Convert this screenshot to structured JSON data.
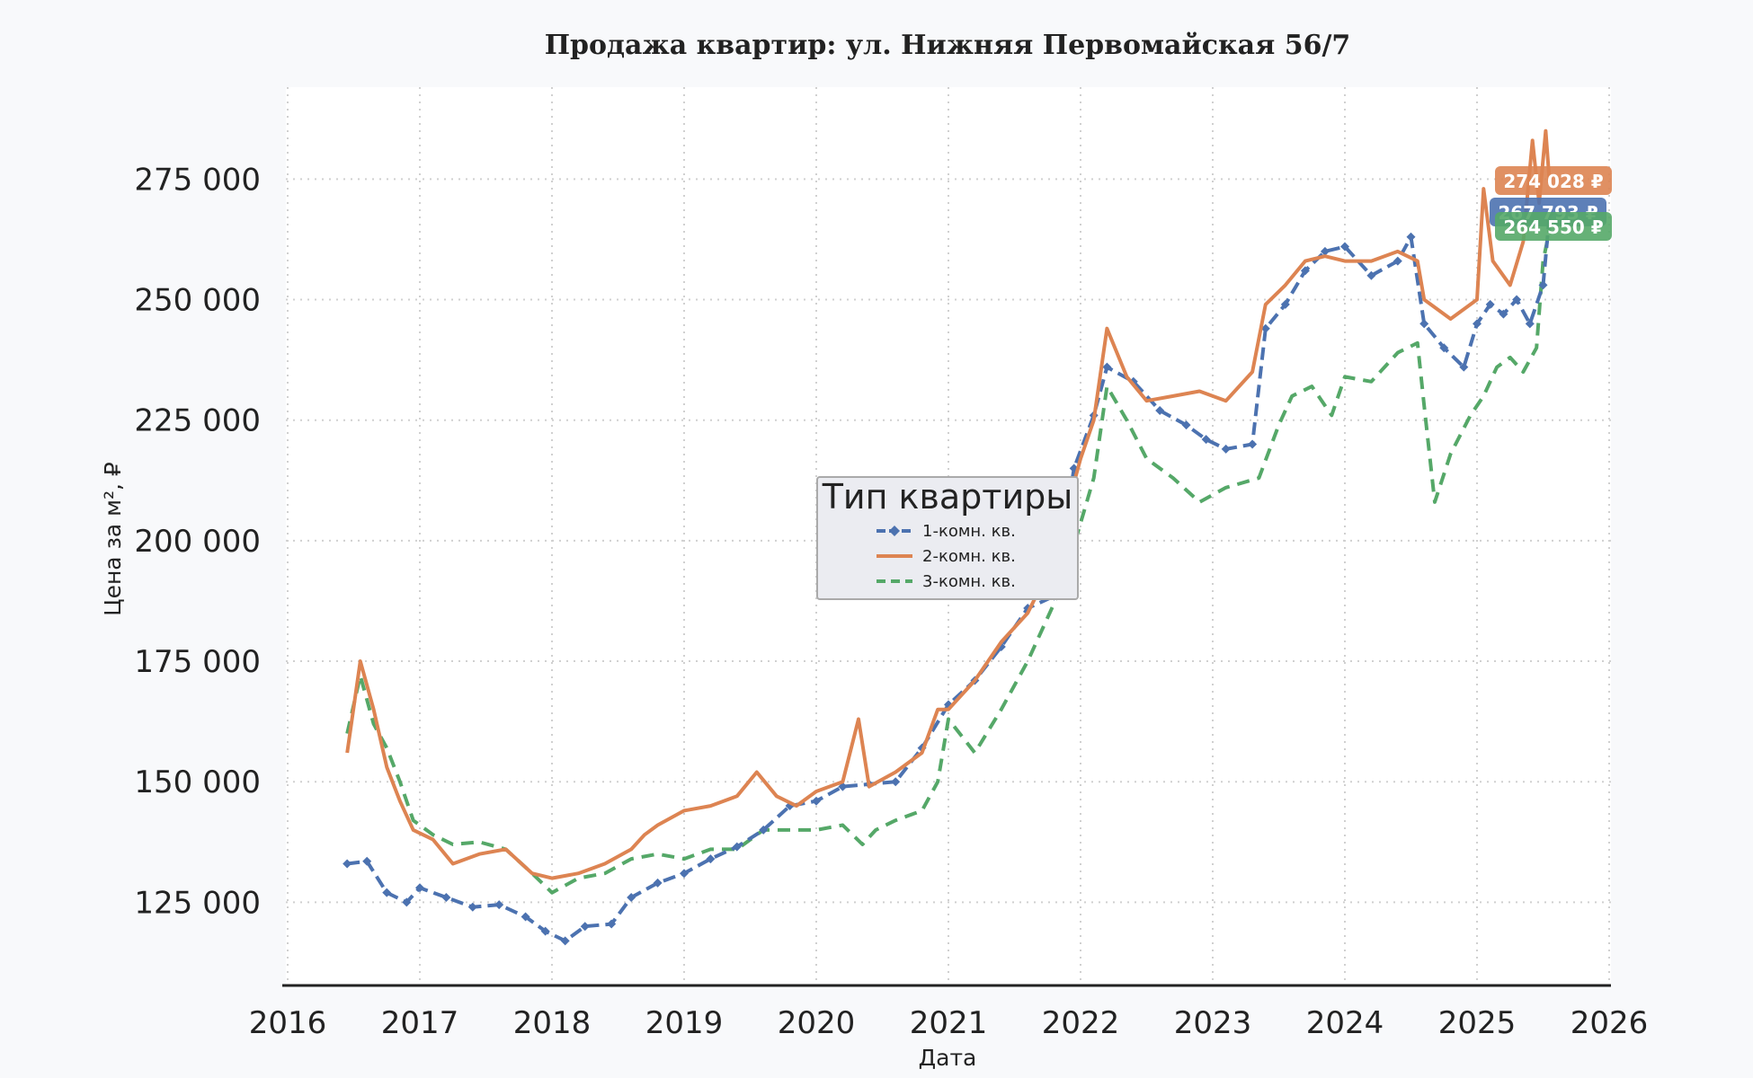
{
  "chart_data": {
    "type": "line",
    "title": "Продажа квартир: ул. Нижняя Первомайская 56/7",
    "xlabel": "Дата",
    "ylabel": "Цена за м², ₽",
    "xlim": [
      2016,
      2026
    ],
    "ylim": [
      108000,
      292000
    ],
    "x_ticks": [
      2016,
      2017,
      2018,
      2019,
      2020,
      2021,
      2022,
      2023,
      2024,
      2025,
      2026
    ],
    "x_tick_labels": [
      "2016",
      "2017",
      "2018",
      "2019",
      "2020",
      "2021",
      "2022",
      "2023",
      "2024",
      "2025",
      "2026"
    ],
    "y_ticks": [
      125000,
      150000,
      175000,
      200000,
      225000,
      250000,
      275000
    ],
    "y_tick_labels": [
      "125 000",
      "150 000",
      "175 000",
      "200 000",
      "225 000",
      "250 000",
      "275 000"
    ],
    "grid": true,
    "legend": {
      "title": "Тип квартиры",
      "placement": "center",
      "entries": [
        "1-комн. кв.",
        "2-комн. кв.",
        "3-комн. кв."
      ]
    },
    "series": [
      {
        "name": "1-комн. кв.",
        "color": "#4c72b0",
        "style": "dashed-diamond",
        "end_label": "267 793 ₽",
        "x": [
          2016.45,
          2016.6,
          2016.75,
          2016.9,
          2017.0,
          2017.2,
          2017.4,
          2017.6,
          2017.8,
          2017.95,
          2018.1,
          2018.25,
          2018.45,
          2018.6,
          2018.8,
          2019.0,
          2019.2,
          2019.4,
          2019.6,
          2019.8,
          2020.0,
          2020.2,
          2020.4,
          2020.6,
          2020.8,
          2021.0,
          2021.2,
          2021.4,
          2021.6,
          2021.8,
          2021.95,
          2022.1,
          2022.2,
          2022.4,
          2022.6,
          2022.8,
          2022.95,
          2023.1,
          2023.3,
          2023.4,
          2023.55,
          2023.7,
          2023.85,
          2024.0,
          2024.2,
          2024.4,
          2024.5,
          2024.6,
          2024.75,
          2024.9,
          2025.0,
          2025.1,
          2025.2,
          2025.3,
          2025.4,
          2025.5,
          2025.55
        ],
        "y": [
          133000,
          133500,
          127000,
          125000,
          128000,
          126000,
          124000,
          124500,
          122000,
          119000,
          117000,
          120000,
          120500,
          126000,
          129000,
          131000,
          134000,
          136500,
          140000,
          145000,
          146000,
          149000,
          149500,
          150000,
          157000,
          166000,
          171000,
          178000,
          186000,
          188500,
          215000,
          226000,
          236000,
          233000,
          227000,
          224000,
          221000,
          219000,
          220000,
          244000,
          249000,
          256000,
          260000,
          261000,
          255000,
          258000,
          263000,
          245000,
          240000,
          236000,
          245000,
          249000,
          247000,
          250000,
          245000,
          253000,
          267793
        ]
      },
      {
        "name": "2-комн. кв.",
        "color": "#dd8452",
        "style": "solid",
        "end_label": "274 028 ₽",
        "x": [
          2016.45,
          2016.55,
          2016.65,
          2016.75,
          2016.85,
          2016.95,
          2017.1,
          2017.25,
          2017.45,
          2017.65,
          2017.85,
          2018.0,
          2018.2,
          2018.4,
          2018.6,
          2018.7,
          2018.8,
          2019.0,
          2019.2,
          2019.4,
          2019.55,
          2019.7,
          2019.85,
          2020.0,
          2020.2,
          2020.32,
          2020.4,
          2020.6,
          2020.8,
          2020.92,
          2021.0,
          2021.2,
          2021.4,
          2021.6,
          2021.8,
          2021.9,
          2022.0,
          2022.1,
          2022.2,
          2022.35,
          2022.5,
          2022.7,
          2022.9,
          2023.1,
          2023.3,
          2023.4,
          2023.55,
          2023.7,
          2023.85,
          2024.0,
          2024.2,
          2024.4,
          2024.55,
          2024.6,
          2024.8,
          2025.0,
          2025.05,
          2025.12,
          2025.25,
          2025.35,
          2025.42,
          2025.47,
          2025.52,
          2025.55
        ],
        "y": [
          156000,
          175000,
          165000,
          153000,
          146000,
          140000,
          138000,
          133000,
          135000,
          136000,
          131000,
          130000,
          131000,
          133000,
          136000,
          139000,
          141000,
          144000,
          145000,
          147000,
          152000,
          147000,
          145000,
          148000,
          150000,
          163000,
          149000,
          152000,
          156000,
          165000,
          165000,
          171000,
          179000,
          185000,
          196000,
          207000,
          217000,
          225000,
          244000,
          234000,
          229000,
          230000,
          231000,
          229000,
          235000,
          249000,
          253000,
          258000,
          259000,
          258000,
          258000,
          260000,
          258000,
          250000,
          246000,
          250000,
          273000,
          258000,
          253000,
          262000,
          283000,
          270000,
          285000,
          274028
        ]
      },
      {
        "name": "3-комн. кв.",
        "color": "#55a868",
        "style": "dashed",
        "end_label": "264 550 ₽",
        "x": [
          2016.45,
          2016.55,
          2016.65,
          2016.75,
          2016.85,
          2016.95,
          2017.1,
          2017.25,
          2017.45,
          2017.65,
          2017.85,
          2018.0,
          2018.2,
          2018.4,
          2018.6,
          2018.8,
          2019.0,
          2019.2,
          2019.4,
          2019.6,
          2019.8,
          2020.0,
          2020.2,
          2020.35,
          2020.45,
          2020.6,
          2020.8,
          2020.92,
          2021.0,
          2021.2,
          2021.4,
          2021.6,
          2021.8,
          2021.95,
          2022.1,
          2022.2,
          2022.35,
          2022.5,
          2022.7,
          2022.9,
          2023.1,
          2023.35,
          2023.5,
          2023.6,
          2023.75,
          2023.9,
          2024.0,
          2024.2,
          2024.4,
          2024.55,
          2024.6,
          2024.68,
          2024.8,
          2024.95,
          2025.05,
          2025.15,
          2025.25,
          2025.35,
          2025.45,
          2025.5,
          2025.55
        ],
        "y": [
          160000,
          172000,
          162000,
          157000,
          150000,
          142000,
          139000,
          137000,
          137500,
          136000,
          131000,
          127000,
          130000,
          131000,
          134000,
          135000,
          134000,
          136000,
          136000,
          140000,
          140000,
          140000,
          141000,
          137000,
          140000,
          142000,
          144000,
          150000,
          163000,
          156000,
          165000,
          175000,
          187000,
          199000,
          213000,
          232000,
          225000,
          217000,
          213000,
          208000,
          211000,
          213000,
          224000,
          230000,
          232000,
          226000,
          234000,
          233000,
          239000,
          241000,
          228000,
          208000,
          218000,
          226000,
          230000,
          236000,
          238000,
          235000,
          240000,
          258000,
          264550
        ]
      }
    ]
  }
}
